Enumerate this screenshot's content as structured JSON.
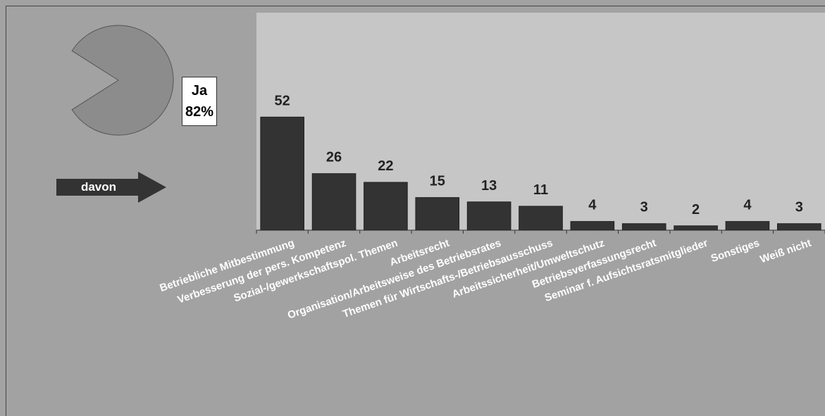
{
  "pie": {
    "label_line1": "Ja",
    "label_line2": "82%",
    "share": 0.82,
    "color": "#8c8c8c"
  },
  "arrow": {
    "label": "davon",
    "color": "#333333"
  },
  "chart_data": {
    "type": "bar",
    "categories": [
      "Betriebliche Mitbestimmung",
      "Verbesserung der pers. Kompetenz",
      "Sozial-/gewerkschaftspol. Themen",
      "Arbeitsrecht",
      "Organisation/Arbeitsweise des Betriebsrates",
      "Themen für Wirtschafts-/Betriebsausschuss",
      "Arbeitssicherheit/Umweltschutz",
      "Betriebsverfassungsrecht",
      "Seminar f. Aufsichtsratsmitglieder",
      "Sonstiges",
      "Weiß nicht"
    ],
    "values": [
      52,
      26,
      22,
      15,
      13,
      11,
      4,
      3,
      2,
      4,
      3
    ],
    "ylim": [
      0,
      100
    ],
    "grid": false,
    "bar_color": "#333333",
    "plot_bg": "#c6c6c6"
  }
}
